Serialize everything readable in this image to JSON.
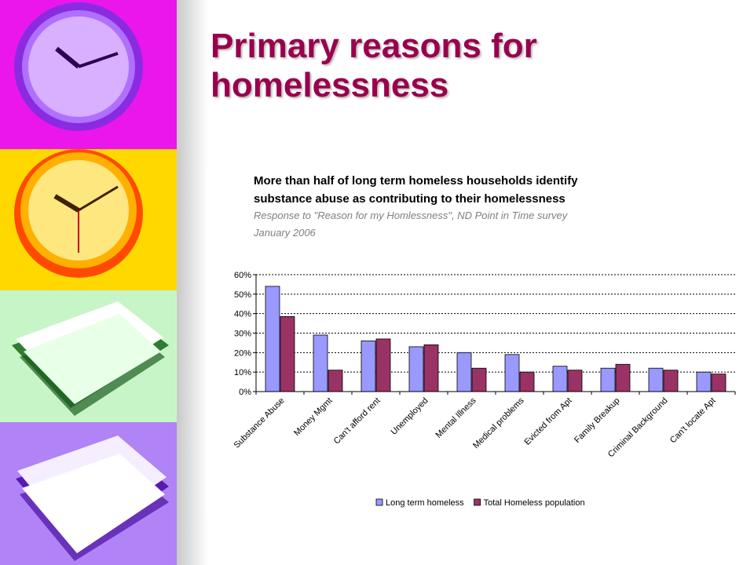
{
  "slide": {
    "title_line1": "Primary reasons for",
    "title_line2": "homelessness"
  },
  "chart_data": {
    "type": "bar",
    "title_line1": "More than half of long term homeless households identify",
    "title_line2": "substance abuse as contributing to their homelessness",
    "subtitle_line1": "Response to \"Reason for my Homlessness\", ND Point in Time survey",
    "subtitle_line2": "January 2006",
    "categories": [
      "Substance Abuse",
      "Money Mgmt",
      "Can't afford rent",
      "Unemployed",
      "Mental Illness",
      "Medical problems",
      "Evicted from Apt",
      "Family Breakup",
      "Criminal Background",
      "Can't locate Apt"
    ],
    "series": [
      {
        "name": "Long term homeless",
        "color": "#9999ff",
        "values": [
          54,
          29,
          26,
          23,
          20,
          19,
          13,
          12,
          12,
          10
        ]
      },
      {
        "name": "Total Homeless population",
        "color": "#993366",
        "values": [
          38.5,
          11,
          27,
          24,
          12,
          10,
          11,
          14,
          11,
          9
        ]
      }
    ],
    "y_ticks": [
      "0%",
      "10%",
      "20%",
      "30%",
      "40%",
      "50%",
      "60%"
    ],
    "ylim": [
      0,
      60
    ],
    "grid": true,
    "legend_position": "bottom"
  }
}
